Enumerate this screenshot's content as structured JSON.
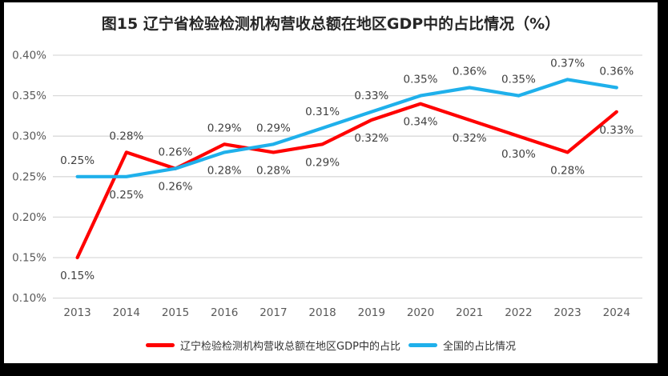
{
  "title": "图15 辽宁省检验检测机构营收总额在地区GDP中的占比情况（%）",
  "colors": {
    "frame_border": "#000000",
    "background": "#FFFFFF",
    "gridline": "#D9D9D9",
    "axis_text": "#595959",
    "data_label_text": "#404040",
    "legend_text": "#333333",
    "liaoning_red": "#FF0000",
    "national_blue": "#1FB0EB"
  },
  "chart_data": {
    "type": "line",
    "categories": [
      "2013",
      "2014",
      "2015",
      "2016",
      "2017",
      "2018",
      "2019",
      "2020",
      "2021",
      "2022",
      "2023",
      "2024"
    ],
    "series": [
      {
        "id": "liaoning",
        "name": "辽宁检验检测机构营收总额在地区GDP中的占比",
        "color": "#FF0000",
        "values": [
          0.15,
          0.28,
          0.26,
          0.29,
          0.28,
          0.29,
          0.32,
          0.34,
          0.32,
          0.3,
          0.28,
          0.33
        ],
        "point_labels": [
          "0.15%",
          "0.28%",
          "0.26%",
          "0.29%",
          "0.28%",
          "0.29%",
          "0.32%",
          "0.34%",
          "0.32%",
          "0.30%",
          "0.28%",
          "0.33%"
        ],
        "label_side": [
          "below",
          "above",
          "above",
          "above",
          "below",
          "below",
          "below",
          "below",
          "below",
          "below",
          "below",
          "below"
        ]
      },
      {
        "id": "national",
        "name": "全国的占比情况",
        "color": "#1FB0EB",
        "values": [
          0.25,
          0.25,
          0.26,
          0.28,
          0.29,
          0.31,
          0.33,
          0.35,
          0.36,
          0.35,
          0.37,
          0.36
        ],
        "point_labels": [
          "0.25%",
          "0.25%",
          "0.26%",
          "0.28%",
          "0.29%",
          "0.31%",
          "0.33%",
          "0.35%",
          "0.36%",
          "0.35%",
          "0.37%",
          "0.36%"
        ],
        "label_side": [
          "above",
          "below",
          "below",
          "below",
          "above",
          "above",
          "above",
          "above",
          "above",
          "above",
          "above",
          "above"
        ]
      }
    ],
    "y_axis": {
      "unit": "%",
      "min": 0.1,
      "max": 0.4,
      "ticks": [
        {
          "label": "0.40%",
          "value": 0.4
        },
        {
          "label": "0.35%",
          "value": 0.35
        },
        {
          "label": "0.30%",
          "value": 0.3
        },
        {
          "label": "0.25%",
          "value": 0.25
        },
        {
          "label": "0.20%",
          "value": 0.2
        },
        {
          "label": "0.15%",
          "value": 0.15
        },
        {
          "label": "0.10%",
          "value": 0.1
        }
      ]
    },
    "grid": true,
    "legend_position": "bottom"
  }
}
